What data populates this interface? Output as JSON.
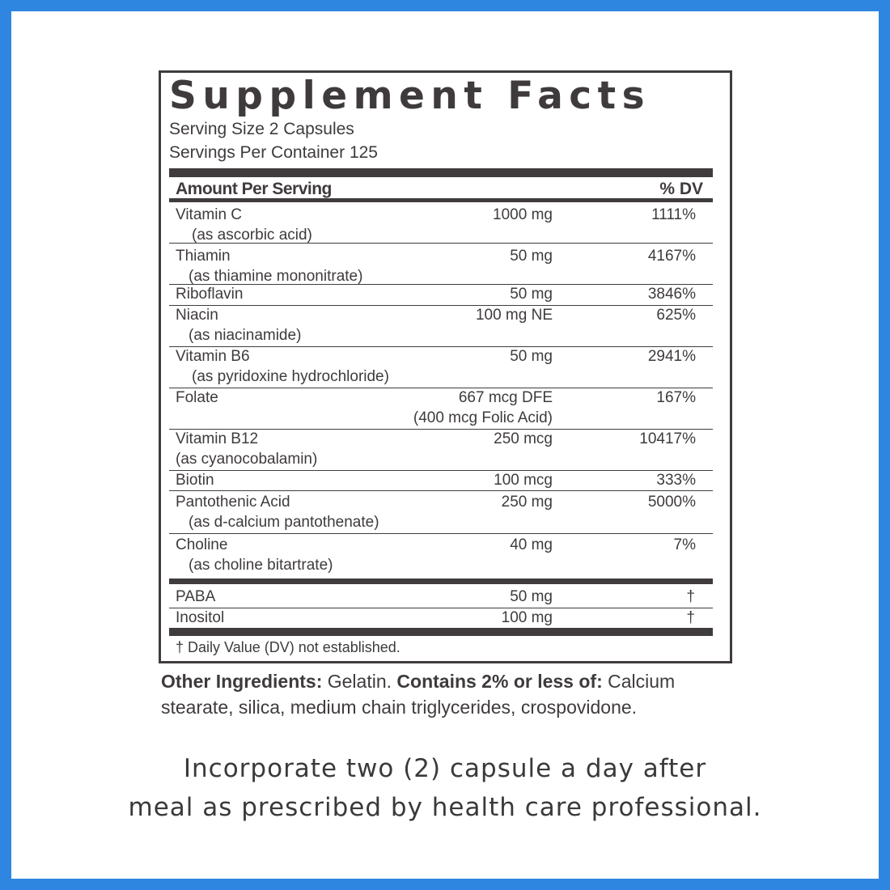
{
  "colors": {
    "frame": "#2f86e0",
    "ink": "#403c3d"
  },
  "facts": {
    "title": "Supplement Facts",
    "serving_size": "Serving Size 2 Capsules",
    "servings_per_container": "Servings Per Container 125",
    "header_amount": "Amount Per Serving",
    "header_dv": "% DV",
    "rows": [
      {
        "name": "Vitamin C",
        "sub": "(as ascorbic acid)",
        "amount": "1000 mg",
        "dv": "1111%"
      },
      {
        "name": "Thiamin",
        "sub": "(as thiamine mononitrate)",
        "amount": "50 mg",
        "dv": "4167%"
      },
      {
        "name": "Riboflavin",
        "amount": "50 mg",
        "dv": "3846%"
      },
      {
        "name": "Niacin",
        "sub": "(as niacinamide)",
        "amount": "100 mg NE",
        "dv": "625%"
      },
      {
        "name": "Vitamin B6",
        "sub": "(as pyridoxine hydrochloride)",
        "amount": "50 mg",
        "dv": "2941%"
      },
      {
        "name": "Folate",
        "amount": "667 mcg DFE",
        "amount2": "(400 mcg Folic Acid)",
        "dv": "167%"
      },
      {
        "name": "Vitamin B12",
        "sub": "(as cyanocobalamin)",
        "amount": "250 mcg",
        "dv": "10417%"
      },
      {
        "name": "Biotin",
        "amount": "100 mcg",
        "dv": "333%"
      },
      {
        "name": "Pantothenic Acid",
        "sub": "(as d-calcium pantothenate)",
        "amount": "250 mg",
        "dv": "5000%"
      },
      {
        "name": "Choline",
        "sub": "(as choline bitartrate)",
        "amount": "40 mg",
        "dv": "7%"
      }
    ],
    "other_rows": [
      {
        "name": "PABA",
        "amount": "50 mg",
        "dv": "†"
      },
      {
        "name": "Inositol",
        "amount": "100 mg",
        "dv": "†"
      }
    ],
    "footnote": "† Daily Value (DV) not established."
  },
  "ingredients": {
    "label1": "Other Ingredients:",
    "text1": " Gelatin. ",
    "label2": "Contains 2% or less of:",
    "text2": " Calcium stearate, silica, medium chain triglycerides, crospovidone."
  },
  "directions": {
    "line1": "Incorporate two (2) capsule a day after",
    "line2": "meal as prescribed by health care professional."
  }
}
